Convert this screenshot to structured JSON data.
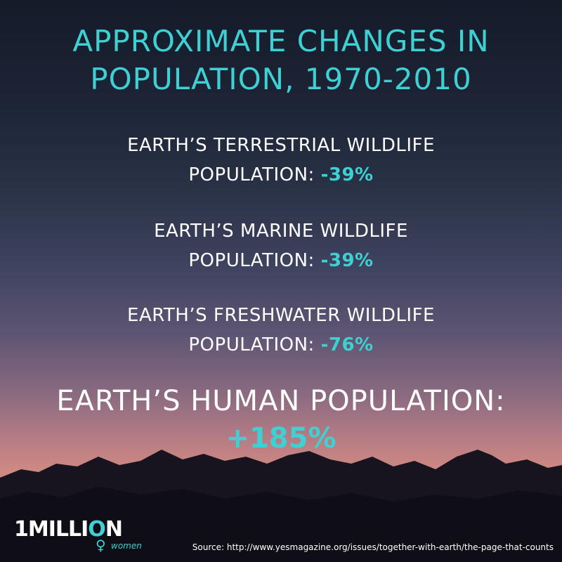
{
  "title_line1": "APPROXIMATE CHANGES IN",
  "title_line2": "POPULATION, 1970-2010",
  "stats": [
    {
      "line1": "EARTH’S TERRESTRIAL WILDLIFE",
      "line2": "POPULATION:",
      "value": "-39%"
    },
    {
      "line1": "EARTH’S MARINE WILDLIFE",
      "line2": "POPULATION:",
      "value": "-39%"
    },
    {
      "line1": "EARTH’S FRESHWATER WILDLIFE",
      "line2": "POPULATION:",
      "value": "-76%"
    }
  ],
  "human": {
    "label": "EARTH’S HUMAN POPULATION:",
    "value": "+185%"
  },
  "logo": {
    "main_a": "1MILLI",
    "main_o": "O",
    "main_b": "N",
    "sub": "women"
  },
  "source": "Source: http://www.yesmagazine.org/issues/together-with-earth/the-page-that-counts",
  "colors": {
    "accent": "#3ed0d2",
    "text": "#ffffff"
  }
}
